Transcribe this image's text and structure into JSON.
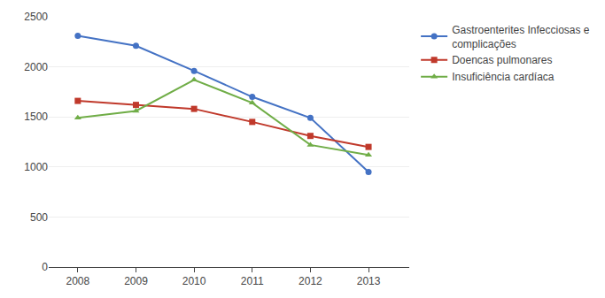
{
  "chart_data": {
    "type": "line",
    "x": [
      2008,
      2009,
      2010,
      2011,
      2012,
      2013
    ],
    "series": [
      {
        "name": "Gastroenterites Infecciosas e\ncomplicações",
        "color": "#4472C4",
        "marker": "circle",
        "values": [
          2310,
          2210,
          1960,
          1700,
          1490,
          950
        ]
      },
      {
        "name": "Doencas pulmonares",
        "color": "#C0392B",
        "marker": "square",
        "values": [
          1660,
          1620,
          1580,
          1450,
          1310,
          1200
        ]
      },
      {
        "name": "Insuficiência cardíaca",
        "color": "#70AD47",
        "marker": "triangle",
        "values": [
          1490,
          1560,
          1870,
          1640,
          1220,
          1120
        ]
      }
    ],
    "xlim": [
      2007.5,
      2013.7
    ],
    "xticks": [
      2008,
      2009,
      2010,
      2011,
      2012,
      2013
    ],
    "ylim": [
      0,
      2500
    ],
    "yticks": [
      0,
      500,
      1000,
      1500,
      2000,
      2500
    ],
    "grid": true,
    "legend": "right"
  }
}
